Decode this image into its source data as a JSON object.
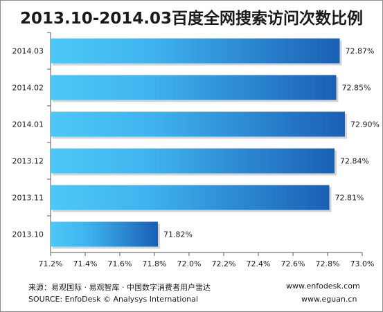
{
  "chart_data": {
    "type": "bar",
    "orientation": "horizontal",
    "title": "2013.10-2014.03百度全网搜索访问次数比例",
    "categories": [
      "2014.03",
      "2014.02",
      "2014.01",
      "2013.12",
      "2013.11",
      "2013.10"
    ],
    "values": [
      72.87,
      72.85,
      72.9,
      72.84,
      72.81,
      71.82
    ],
    "value_labels": [
      "72.87%",
      "72.85%",
      "72.90%",
      "72.84%",
      "72.81%",
      "71.82%"
    ],
    "xlim": [
      71.2,
      73.0
    ],
    "xticks": [
      "71.2%",
      "71.4%",
      "71.6%",
      "71.8%",
      "72.0%",
      "72.2%",
      "72.4%",
      "72.6%",
      "72.8%",
      "73.0%"
    ],
    "xlabel": "",
    "ylabel": "",
    "grid": false,
    "legend": "none",
    "bar_gradient": [
      "#4dc8f7",
      "#1a5fb4"
    ]
  },
  "footer": {
    "source_cn": "来源：易观国际 · 易观智库 · 中国数字消费者用户雷达",
    "source_en": "SOURCE: EnfoDesk © Analysys International",
    "url1": "www.enfodesk.com",
    "url2": "www.eguan.cn"
  }
}
